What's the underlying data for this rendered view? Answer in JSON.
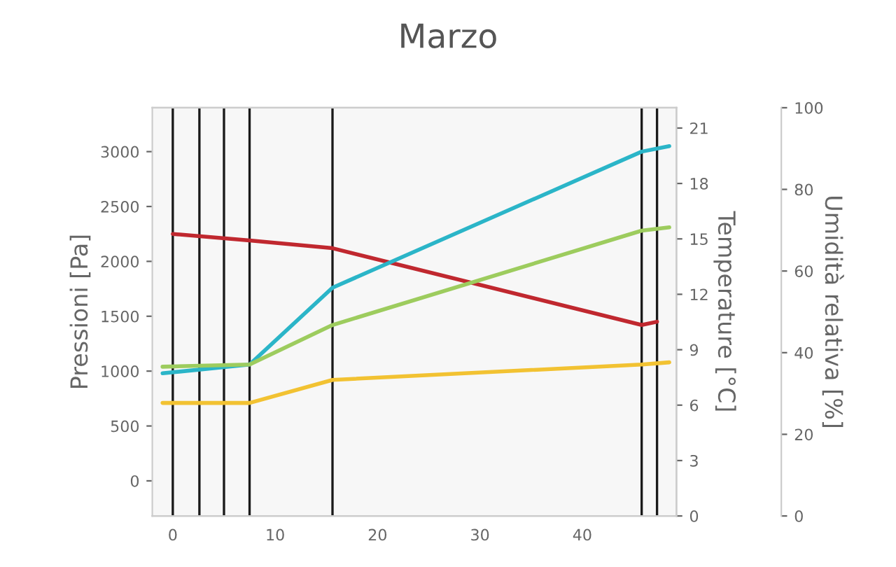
{
  "chart_data": {
    "type": "line",
    "title": "Marzo",
    "ylabel": "Pressioni [Pa]",
    "y2label": "Temperature [°C]",
    "y3label": "Umidità relativa [%]",
    "xlim": [
      -2,
      49.2
    ],
    "xticks": [
      0,
      10,
      20,
      30,
      40
    ],
    "ylim": [
      -320,
      3400
    ],
    "yticks": [
      0,
      500,
      1000,
      1500,
      2000,
      2500,
      3000
    ],
    "y2lim": [
      0,
      22.1
    ],
    "y2ticks": [
      0,
      3,
      6,
      9,
      12,
      15,
      18,
      21
    ],
    "y3lim": [
      0,
      100
    ],
    "y3ticks": [
      0,
      20,
      40,
      60,
      80,
      100
    ],
    "grid": false,
    "legend": false,
    "line_style": "solid",
    "marker": "none",
    "series": [
      {
        "color": "#c0282f",
        "x": [
          0,
          7.5,
          15.6,
          45.8,
          47.3
        ],
        "values": [
          2250,
          2190,
          2120,
          1420,
          1450
        ]
      },
      {
        "color": "#2bb5c8",
        "x": [
          -1,
          7.5,
          15.6,
          45.8,
          48.5
        ],
        "values": [
          980,
          1060,
          1760,
          3000,
          3050
        ]
      },
      {
        "color": "#9dcc5e",
        "x": [
          -1,
          7.5,
          15.6,
          45.8,
          48.5
        ],
        "values": [
          1040,
          1060,
          1420,
          2280,
          2310
        ]
      },
      {
        "color": "#f2c232",
        "x": [
          -1,
          7.5,
          15.6,
          45.8,
          48.5
        ],
        "values": [
          710,
          710,
          920,
          1060,
          1080
        ]
      }
    ],
    "ref_lines": [
      {
        "axis": "x",
        "value": 0,
        "color": "#1a1a1a"
      },
      {
        "axis": "x",
        "value": 2.6,
        "color": "#1a1a1a"
      },
      {
        "axis": "x",
        "value": 5,
        "color": "#1a1a1a"
      },
      {
        "axis": "x",
        "value": 7.5,
        "color": "#1a1a1a"
      },
      {
        "axis": "x",
        "value": 15.6,
        "color": "#1a1a1a"
      },
      {
        "axis": "x",
        "value": 45.8,
        "color": "#1a1a1a"
      },
      {
        "axis": "x",
        "value": 47.3,
        "color": "#1a1a1a"
      }
    ]
  }
}
